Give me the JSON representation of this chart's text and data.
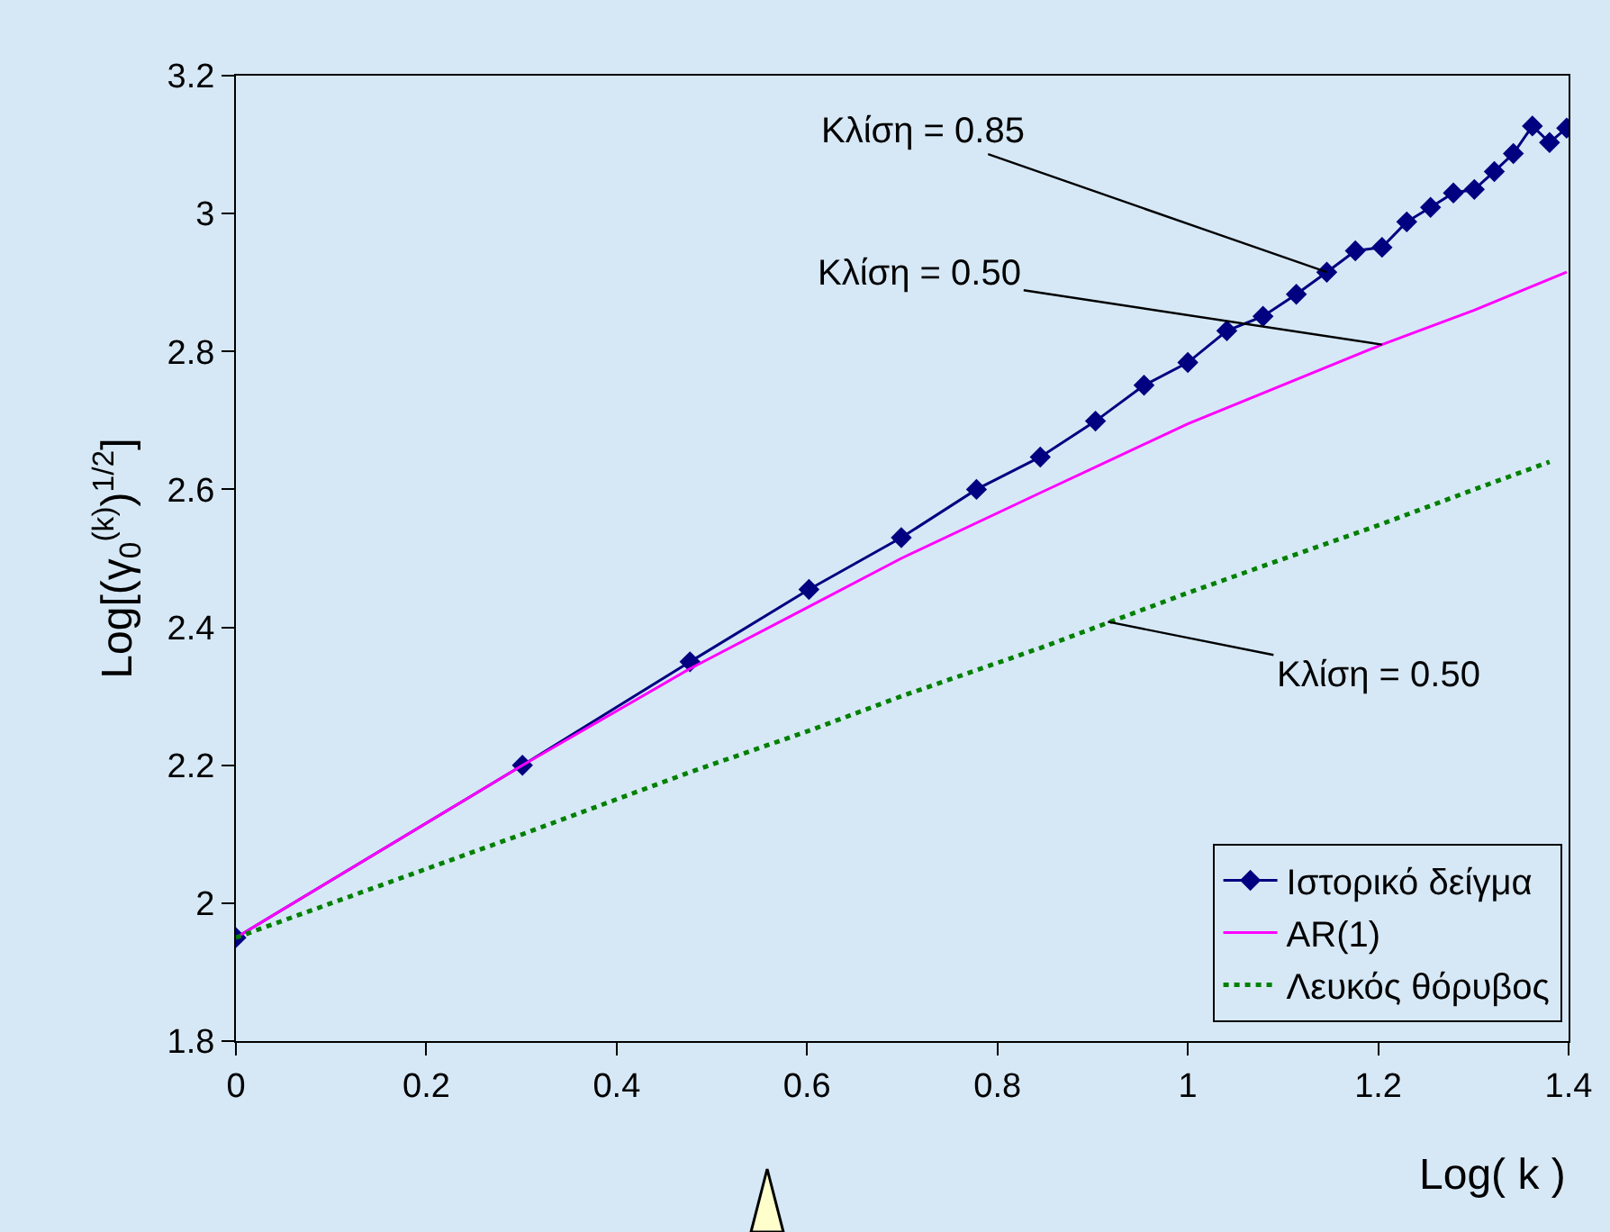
{
  "chart_data": {
    "type": "line",
    "ylabel": "Log[(γ$_{0}$$^{(k)}$)$^{1/2}$]",
    "xlabel": "Log( k )",
    "xlim": [
      0,
      1.4
    ],
    "xticks": [
      0,
      0.2,
      0.4,
      0.6,
      0.8,
      1,
      1.2,
      1.4
    ],
    "ylim": [
      1.8,
      3.2
    ],
    "yticks": [
      1.8,
      2,
      2.2,
      2.4,
      2.6,
      2.8,
      3,
      3.2
    ],
    "grid": false,
    "legend": "bottom right",
    "series": [
      {
        "name": "Ιστορικό δείγμα",
        "color": "#000080",
        "marker": "diamond",
        "line_style": "solid",
        "x": [
          0,
          0.301,
          0.477,
          0.602,
          0.699,
          0.778,
          0.845,
          0.903,
          0.954,
          1,
          1.041,
          1.079,
          1.114,
          1.146,
          1.176,
          1.204,
          1.23,
          1.255,
          1.279,
          1.301,
          1.322,
          1.342,
          1.362,
          1.38,
          1.398
        ],
        "values": [
          1.95,
          2.2,
          2.35,
          2.455,
          2.53,
          2.6,
          2.647,
          2.699,
          2.751,
          2.784,
          2.83,
          2.851,
          2.883,
          2.915,
          2.946,
          2.951,
          2.988,
          3.009,
          3.03,
          3.035,
          3.061,
          3.087,
          3.127,
          3.103,
          3.124
        ]
      },
      {
        "name": "AR(1)",
        "color": "#ff00ff",
        "marker": "none",
        "line_style": "solid",
        "x": [
          0,
          0.301,
          0.477,
          0.602,
          0.699,
          0.845,
          1,
          1.204,
          1.301,
          1.398
        ],
        "values": [
          1.95,
          2.2,
          2.34,
          2.43,
          2.5,
          2.595,
          2.695,
          2.81,
          2.86,
          2.915
        ]
      },
      {
        "name": "Λευκός θόρυβος",
        "color": "#008000",
        "marker": "none",
        "line_style": "dotted",
        "x": [
          0,
          0.301,
          0.477,
          0.602,
          0.699,
          0.845,
          1,
          1.204,
          1.301,
          1.38
        ],
        "values": [
          1.95,
          2.1,
          2.19,
          2.25,
          2.3,
          2.37,
          2.45,
          2.55,
          2.6,
          2.64
        ]
      }
    ],
    "annotations": [
      {
        "text": "Κλίση = 0.85",
        "x": 1.146,
        "y": 2.915
      },
      {
        "text": "Κλίση = 0.50",
        "x": 1.204,
        "y": 2.81
      },
      {
        "text": "Κλίση = 0.50",
        "x": 0.916,
        "y": 2.408
      }
    ]
  }
}
